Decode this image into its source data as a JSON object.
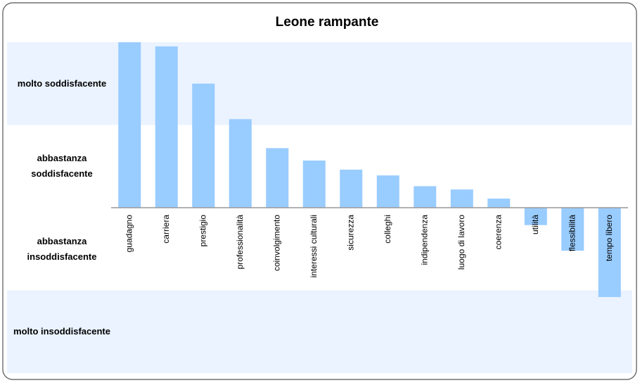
{
  "chart_data": {
    "type": "bar",
    "title": "Leone rampante",
    "categories": [
      "guadagno",
      "carriera",
      "prestigio",
      "professionalità",
      "coinvolgimento",
      "interessi culturali",
      "sicurezza",
      "colleghi",
      "indipendenza",
      "luogo di lavoro",
      "coerenza",
      "utilità",
      "flessibilità",
      "tempo libero"
    ],
    "values": [
      2.0,
      1.95,
      1.5,
      1.07,
      0.72,
      0.57,
      0.46,
      0.39,
      0.26,
      0.22,
      0.11,
      -0.21,
      -0.52,
      -1.08
    ],
    "color": "#99ccff",
    "ylim": [
      -2,
      2
    ],
    "yticks": [
      {
        "value": 1.5,
        "label": "molto soddisfacente"
      },
      {
        "value": 0.5,
        "label": "abbastanza soddisfacente"
      },
      {
        "value": -0.5,
        "label": "abbastanza insoddisfacente"
      },
      {
        "value": -1.5,
        "label": "molto insoddisfacente"
      }
    ],
    "band_colors": [
      "#eaf3ff",
      "#ffffff",
      "#ffffff",
      "#eaf3ff"
    ]
  }
}
